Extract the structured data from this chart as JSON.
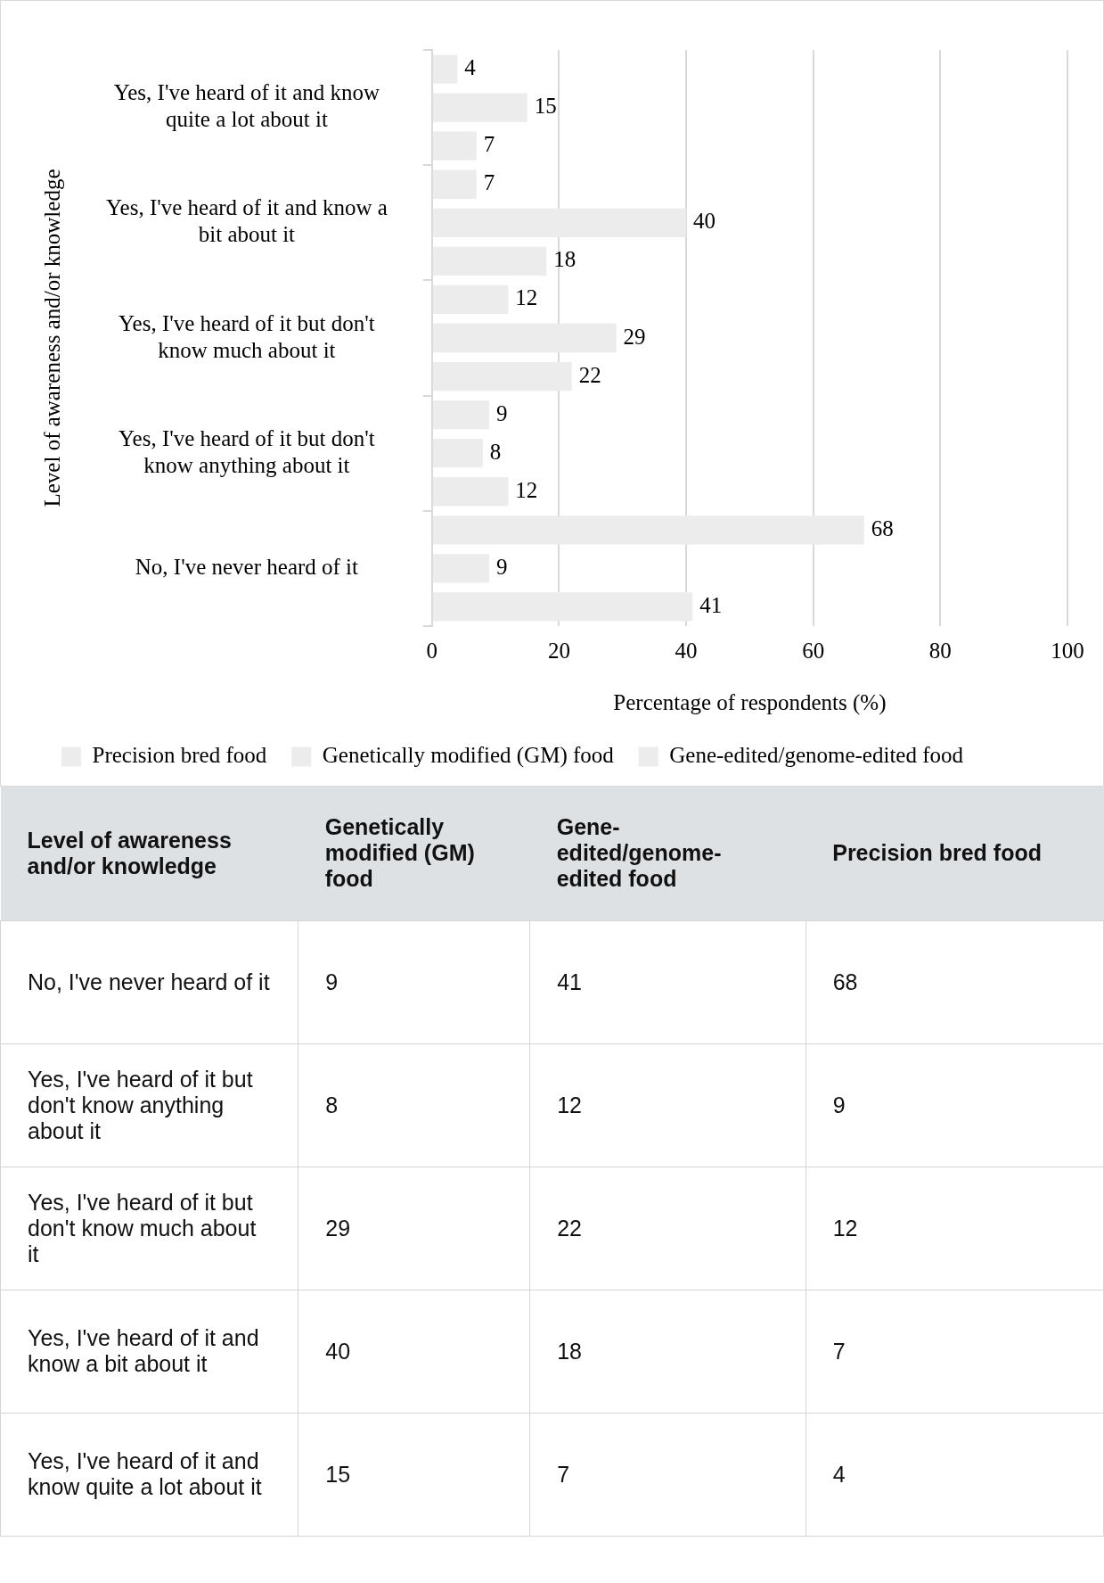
{
  "chart_data": [
    {
      "type": "bar",
      "orientation": "horizontal",
      "categories": [
        "Yes, I've heard of it and know quite a lot about it",
        "Yes, I've heard of it and know a bit about it",
        "Yes, I've heard of it but don't know much about it",
        "Yes, I've heard of it but don't know anything about it",
        "No, I've never heard of it"
      ],
      "series": [
        {
          "name": "Precision bred food",
          "color": "#ececec",
          "values": [
            4,
            7,
            12,
            9,
            68
          ]
        },
        {
          "name": "Genetically modified (GM) food",
          "color": "#ececec",
          "values": [
            15,
            40,
            29,
            8,
            9
          ]
        },
        {
          "name": "Gene-edited/genome-edited food",
          "color": "#ececec",
          "values": [
            7,
            18,
            22,
            12,
            41
          ]
        }
      ],
      "xlabel": "Percentage of respondents (%)",
      "ylabel": "Level of awareness and/or knowledge",
      "xlim": [
        0,
        100
      ],
      "xticks": [
        0,
        20,
        40,
        60,
        80,
        100
      ],
      "grid": "x",
      "legend": "bottom",
      "data_labels": true
    },
    {
      "type": "heatmap",
      "ylabel": "Level of awareness and/or knowledge",
      "categories": [
        "Genetically modified (GM) food",
        "Gene-edited/genome-edited food",
        "Precision bred food"
      ],
      "y_categories": [
        "No, I've never heard of it",
        "Yes, I've heard of it but don't know anything about it",
        "Yes, I've heard of it but don't know much about it",
        "Yes, I've heard of it and know a bit about it",
        "Yes, I've heard of it and know quite a lot about it"
      ],
      "cells": [
        [
          9,
          41,
          68
        ],
        [
          8,
          12,
          9
        ],
        [
          29,
          22,
          12
        ],
        [
          40,
          18,
          7
        ],
        [
          15,
          7,
          4
        ]
      ],
      "data_labels": true
    }
  ]
}
